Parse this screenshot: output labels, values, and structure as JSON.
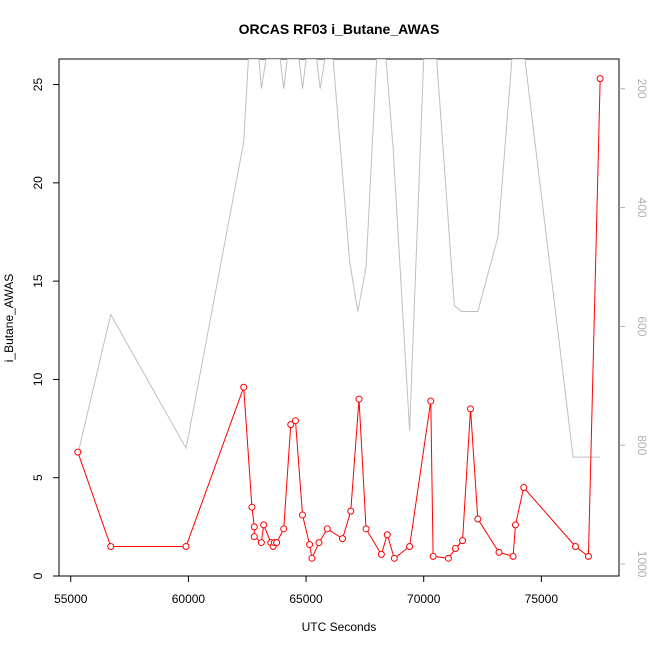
{
  "chart_data": {
    "type": "line",
    "title": "ORCAS RF03 i_Butane_AWAS",
    "xlabel": "UTC Seconds",
    "ylabel": "i_Butane_AWAS",
    "xlim": [
      54500,
      78300
    ],
    "ylim": [
      0,
      26.3
    ],
    "x_ticks": [
      55000,
      60000,
      65000,
      70000,
      75000
    ],
    "x_tick_labels": [
      "55000",
      "60000",
      "65000",
      "70000",
      "75000"
    ],
    "y_ticks": [
      0,
      5,
      10,
      15,
      20,
      25
    ],
    "y_tick_labels": [
      "0",
      "5",
      "10",
      "15",
      "20",
      "25"
    ],
    "y2lim": [
      1020,
      150
    ],
    "y2_ticks": [
      200,
      400,
      600,
      800,
      1000
    ],
    "y2_tick_labels": [
      "200",
      "400",
      "600",
      "800",
      "1000"
    ],
    "grid": false,
    "series": [
      {
        "role": "primary",
        "color": "#ff0000",
        "marker": "open-circle",
        "points": [
          [
            55300,
            6.3
          ],
          [
            56700,
            1.5
          ],
          [
            59900,
            1.5
          ],
          [
            62350,
            9.6
          ],
          [
            62700,
            3.5
          ],
          [
            62800,
            2.5
          ],
          [
            62800,
            2.0
          ],
          [
            63100,
            1.7
          ],
          [
            63200,
            2.6
          ],
          [
            63500,
            1.7
          ],
          [
            63600,
            1.5
          ],
          [
            63650,
            1.7
          ],
          [
            63750,
            1.7
          ],
          [
            64050,
            2.4
          ],
          [
            64350,
            7.7
          ],
          [
            64550,
            7.9
          ],
          [
            64850,
            3.1
          ],
          [
            65150,
            1.6
          ],
          [
            65250,
            0.9
          ],
          [
            65550,
            1.7
          ],
          [
            65900,
            2.4
          ],
          [
            66550,
            1.9
          ],
          [
            66900,
            3.3
          ],
          [
            67250,
            9.0
          ],
          [
            67550,
            2.4
          ],
          [
            68200,
            1.1
          ],
          [
            68450,
            2.1
          ],
          [
            68750,
            0.9
          ],
          [
            69400,
            1.5
          ],
          [
            70300,
            8.9
          ],
          [
            70400,
            1.0
          ],
          [
            71050,
            0.9
          ],
          [
            71350,
            1.4
          ],
          [
            71650,
            1.8
          ],
          [
            71990,
            8.5
          ],
          [
            72300,
            2.9
          ],
          [
            73200,
            1.2
          ],
          [
            73800,
            1.0
          ],
          [
            73900,
            2.6
          ],
          [
            74250,
            4.5
          ],
          [
            76450,
            1.5
          ],
          [
            77000,
            1.0
          ],
          [
            77500,
            25.3
          ]
        ]
      },
      {
        "role": "secondary-axis",
        "color": "#bfbfbf",
        "marker": "none",
        "points": [
          [
            55300,
            815
          ],
          [
            56700,
            580
          ],
          [
            59900,
            805
          ],
          [
            62350,
            290
          ],
          [
            62550,
            150
          ],
          [
            63000,
            150
          ],
          [
            63100,
            200
          ],
          [
            63300,
            150
          ],
          [
            63900,
            150
          ],
          [
            64050,
            200
          ],
          [
            64200,
            150
          ],
          [
            64700,
            150
          ],
          [
            64850,
            200
          ],
          [
            65000,
            150
          ],
          [
            65450,
            150
          ],
          [
            65600,
            200
          ],
          [
            65800,
            150
          ],
          [
            66150,
            150
          ],
          [
            66850,
            490
          ],
          [
            67200,
            575
          ],
          [
            67550,
            500
          ],
          [
            68000,
            150
          ],
          [
            68400,
            150
          ],
          [
            68700,
            300
          ],
          [
            69400,
            775
          ],
          [
            70000,
            150
          ],
          [
            70550,
            150
          ],
          [
            71300,
            565
          ],
          [
            71600,
            575
          ],
          [
            72300,
            575
          ],
          [
            73150,
            450
          ],
          [
            73750,
            150
          ],
          [
            74300,
            150
          ],
          [
            76350,
            820
          ],
          [
            77500,
            820
          ]
        ]
      }
    ]
  }
}
